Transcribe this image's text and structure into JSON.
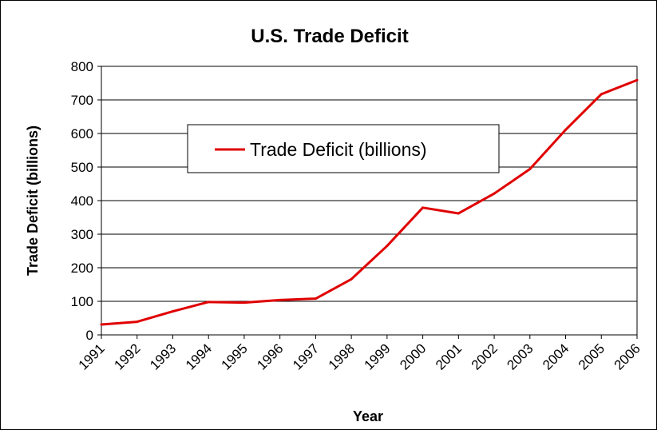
{
  "chart_data": {
    "type": "line",
    "title": "U.S. Trade Deficit",
    "xlabel": "Year",
    "ylabel": "Trade Deficit (billions)",
    "ylim": [
      0,
      800
    ],
    "yticks": [
      "0",
      "100",
      "200",
      "300",
      "400",
      "500",
      "600",
      "700",
      "800"
    ],
    "categories": [
      "1991",
      "1992",
      "1993",
      "1994",
      "1995",
      "1996",
      "1997",
      "1998",
      "1999",
      "2000",
      "2001",
      "2002",
      "2003",
      "2004",
      "2005",
      "2006"
    ],
    "grid": "horizontal",
    "legend_position": "upper-left",
    "series": [
      {
        "name": "Trade Deficit (billions)",
        "color": "#e00000",
        "values": [
          31,
          39,
          70,
          98,
          96,
          104,
          108,
          166,
          265,
          379,
          362,
          421,
          494,
          611,
          717,
          759
        ]
      }
    ]
  }
}
